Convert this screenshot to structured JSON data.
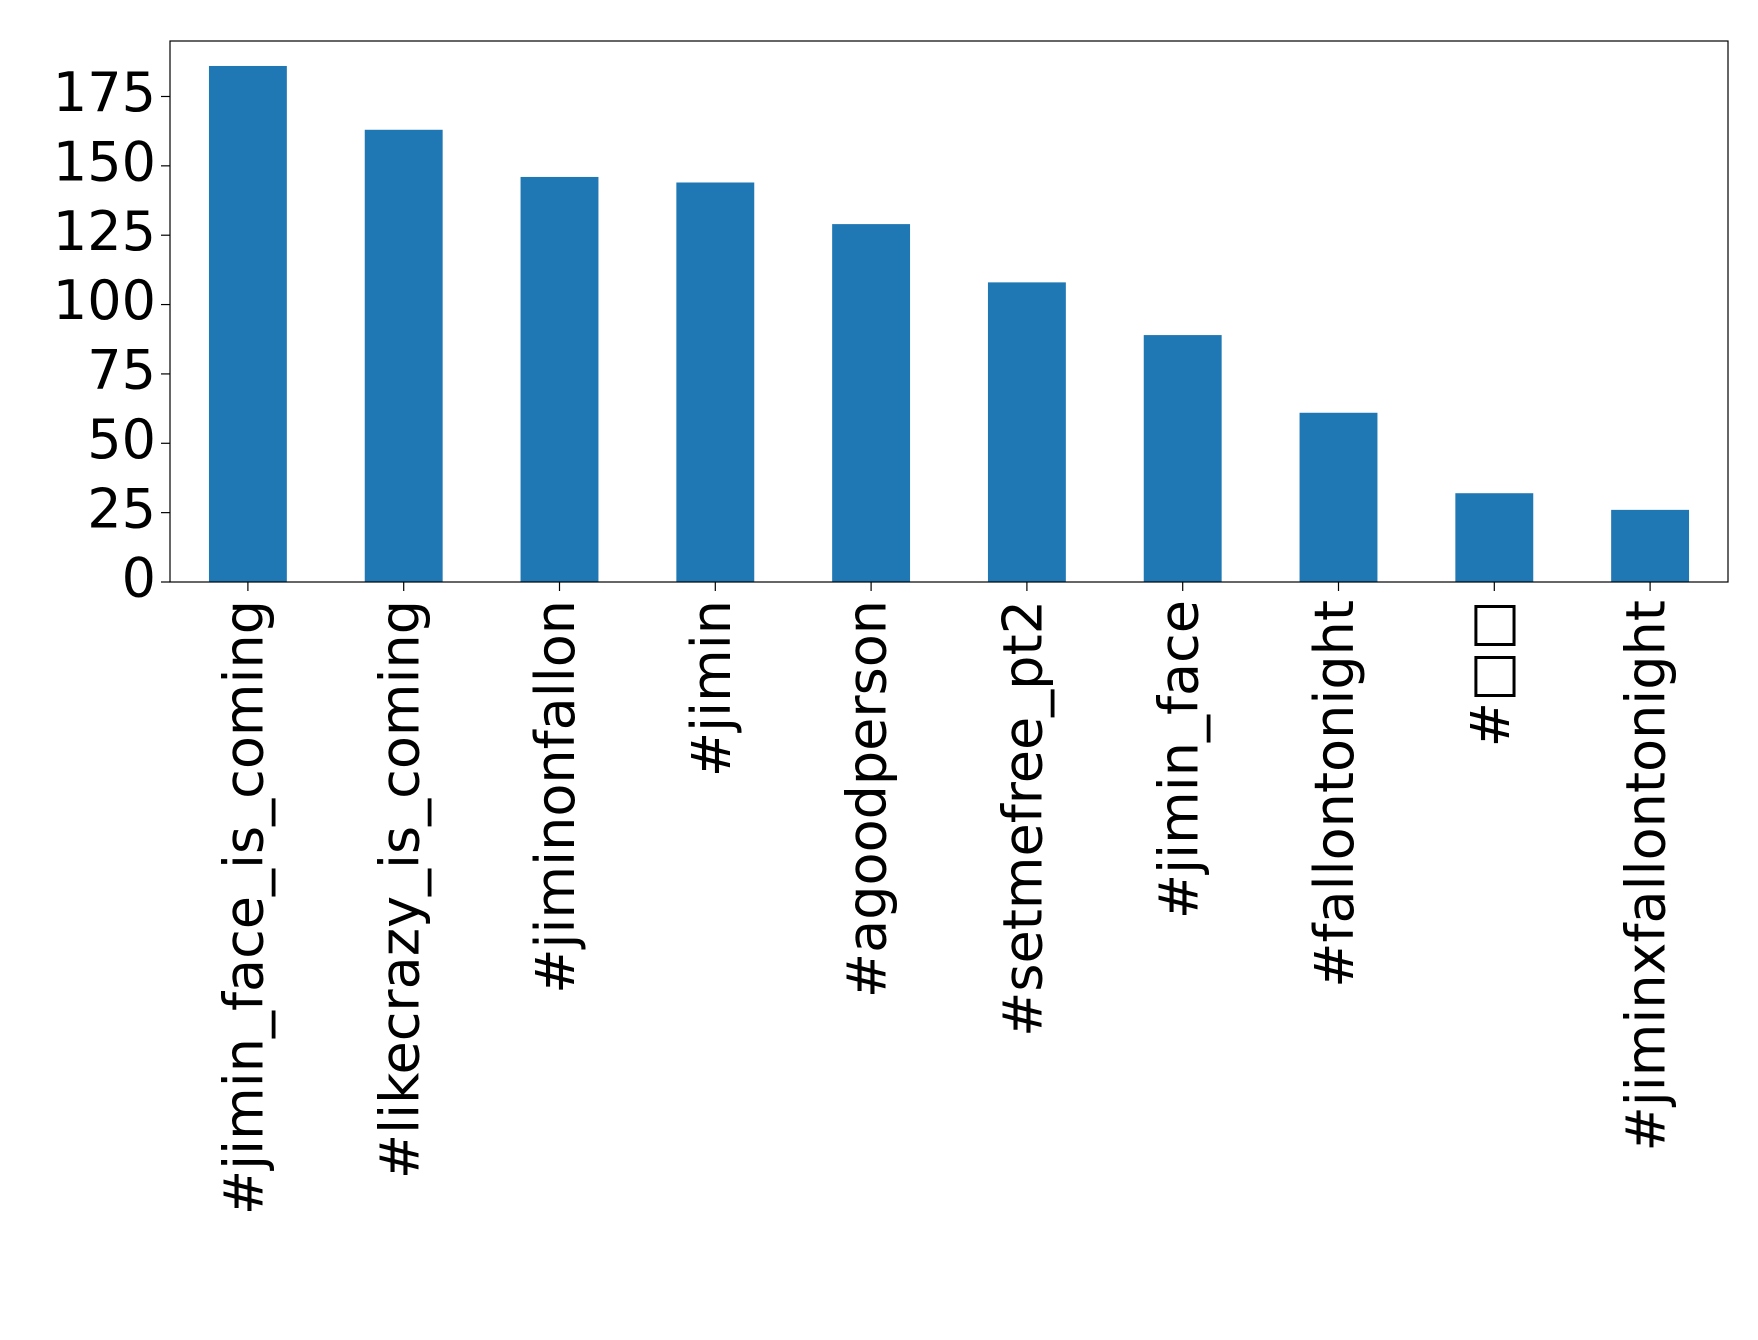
{
  "chart_data": {
    "type": "bar",
    "categories": [
      "#jimin_face_is_coming",
      "#likecrazy_is_coming",
      "#jiminonfallon",
      "#jimin",
      "#agoodperson",
      "#setmefree_pt2",
      "#jimin_face",
      "#fallontonight",
      "#□□",
      "#jiminxfallontonight"
    ],
    "values": [
      186,
      163,
      146,
      144,
      129,
      108,
      89,
      61,
      32,
      26
    ],
    "color": "#1f77b4",
    "ylim": [
      0,
      195
    ],
    "yticks": [
      0,
      25,
      50,
      75,
      100,
      125,
      150,
      175
    ],
    "grid": false
  }
}
